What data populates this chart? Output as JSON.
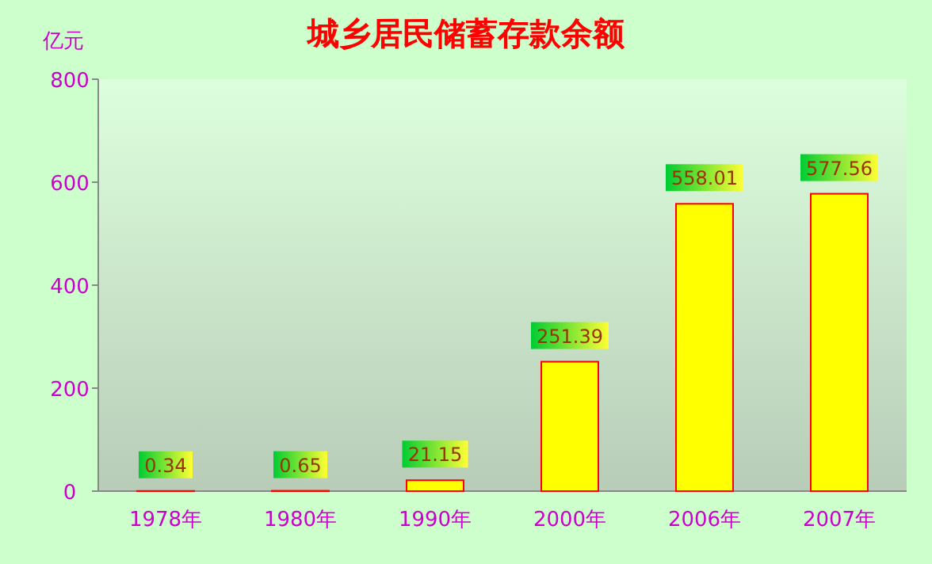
{
  "chart_data": {
    "type": "bar",
    "title": "城乡居民储蓄存款余额",
    "ylabel": "亿元",
    "categories": [
      "1978年",
      "1980年",
      "1990年",
      "2000年",
      "2006年",
      "2007年"
    ],
    "values": [
      0.34,
      0.65,
      21.15,
      251.39,
      558.01,
      577.56
    ],
    "color": "#ffff00",
    "ylim": [
      0,
      800
    ],
    "yticks": [
      0,
      200,
      400,
      600,
      800
    ],
    "data_labels": true
  }
}
